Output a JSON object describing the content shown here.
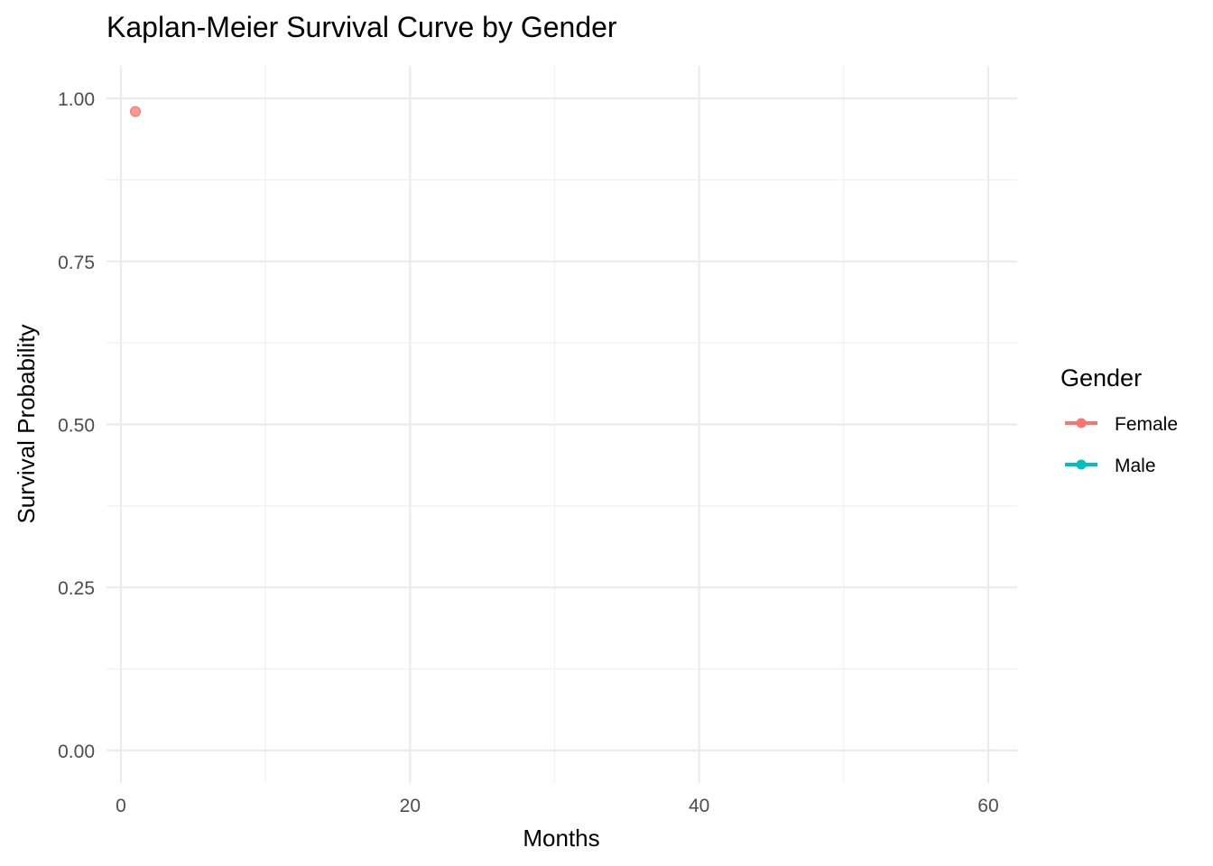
{
  "chart_data": {
    "type": "line",
    "title": "Kaplan-Meier Survival Curve by Gender",
    "xlabel": "Months",
    "ylabel": "Survival Probability",
    "xlim": [
      -1,
      62
    ],
    "ylim": [
      -0.05,
      1.05
    ],
    "x_ticks": [
      0,
      20,
      40,
      60
    ],
    "x_tick_labels": [
      "0",
      "20",
      "40",
      "60"
    ],
    "x_minor_ticks": [
      10,
      30,
      50
    ],
    "y_ticks": [
      0,
      0.25,
      0.5,
      0.75,
      1.0
    ],
    "y_tick_labels": [
      "0.00",
      "0.25",
      "0.50",
      "0.75",
      "1.00"
    ],
    "y_minor_ticks": [
      0.125,
      0.375,
      0.625,
      0.875
    ],
    "grid": true,
    "legend": {
      "title": "Gender",
      "placement": "right",
      "entries": [
        "Female",
        "Male"
      ]
    },
    "series": [
      {
        "name": "Female",
        "color": "#F8766D",
        "points": [
          {
            "x": 1,
            "y": 0.98
          }
        ]
      },
      {
        "name": "Male",
        "color": "#00BFC4",
        "points": []
      }
    ]
  }
}
